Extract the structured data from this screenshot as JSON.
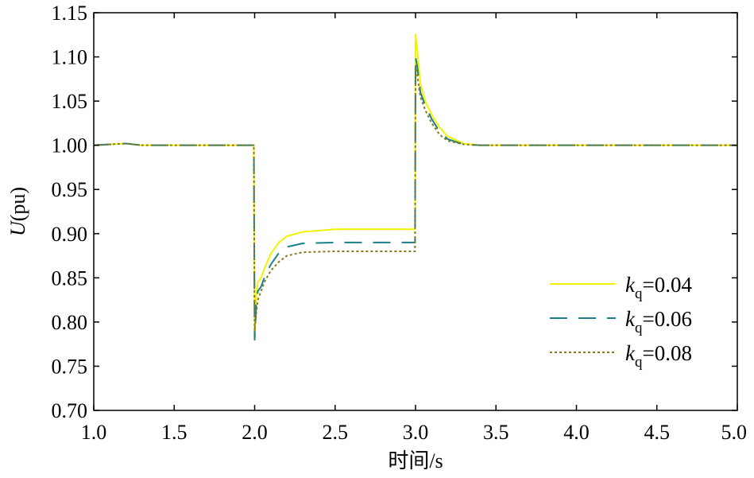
{
  "chart_data": {
    "type": "line",
    "xlabel": "时间/s",
    "ylabel_italic": "U",
    "ylabel_rest": "(pu)",
    "xlim": [
      1.0,
      5.0
    ],
    "ylim": [
      0.7,
      1.15
    ],
    "x_ticks": [
      "1.0",
      "1.5",
      "2.0",
      "2.5",
      "3.0",
      "3.5",
      "4.0",
      "4.5",
      "5.0"
    ],
    "y_ticks": [
      "0.70",
      "0.75",
      "0.80",
      "0.85",
      "0.90",
      "0.95",
      "1.00",
      "1.05",
      "1.10",
      "1.15"
    ],
    "grid": false,
    "legend_position": "bottom-right",
    "series": [
      {
        "name_italic": "k",
        "name_sub": "q",
        "name_value": "=0.04",
        "color": "#f2f200",
        "style": "solid",
        "points": [
          [
            1.0,
            1.0
          ],
          [
            1.1,
            1.001
          ],
          [
            1.2,
            1.002
          ],
          [
            1.3,
            1.0
          ],
          [
            1.5,
            1.0
          ],
          [
            1.995,
            1.0
          ],
          [
            2.0,
            0.78
          ],
          [
            2.01,
            0.83
          ],
          [
            2.02,
            0.845
          ],
          [
            2.04,
            0.85
          ],
          [
            2.06,
            0.86
          ],
          [
            2.1,
            0.877
          ],
          [
            2.15,
            0.89
          ],
          [
            2.2,
            0.897
          ],
          [
            2.3,
            0.902
          ],
          [
            2.5,
            0.905
          ],
          [
            2.8,
            0.905
          ],
          [
            2.997,
            0.905
          ],
          [
            3.0,
            1.125
          ],
          [
            3.01,
            1.11
          ],
          [
            3.03,
            1.07
          ],
          [
            3.06,
            1.05
          ],
          [
            3.1,
            1.035
          ],
          [
            3.15,
            1.02
          ],
          [
            3.2,
            1.01
          ],
          [
            3.3,
            1.002
          ],
          [
            3.4,
            1.0
          ],
          [
            4.0,
            1.0
          ],
          [
            5.0,
            1.0
          ]
        ]
      },
      {
        "name_italic": "k",
        "name_sub": "q",
        "name_value": "=0.06",
        "color": "#1a7f8a",
        "style": "dashed",
        "points": [
          [
            1.0,
            1.0
          ],
          [
            1.1,
            1.001
          ],
          [
            1.2,
            1.002
          ],
          [
            1.3,
            1.0
          ],
          [
            1.5,
            1.0
          ],
          [
            1.995,
            1.0
          ],
          [
            2.0,
            0.78
          ],
          [
            2.01,
            0.82
          ],
          [
            2.02,
            0.835
          ],
          [
            2.04,
            0.84
          ],
          [
            2.06,
            0.85
          ],
          [
            2.1,
            0.865
          ],
          [
            2.15,
            0.878
          ],
          [
            2.2,
            0.885
          ],
          [
            2.3,
            0.889
          ],
          [
            2.5,
            0.89
          ],
          [
            2.8,
            0.89
          ],
          [
            2.997,
            0.89
          ],
          [
            3.0,
            1.1
          ],
          [
            3.01,
            1.09
          ],
          [
            3.03,
            1.06
          ],
          [
            3.06,
            1.045
          ],
          [
            3.1,
            1.03
          ],
          [
            3.15,
            1.015
          ],
          [
            3.2,
            1.007
          ],
          [
            3.3,
            1.001
          ],
          [
            3.4,
            1.0
          ],
          [
            4.0,
            1.0
          ],
          [
            5.0,
            1.0
          ]
        ]
      },
      {
        "name_italic": "k",
        "name_sub": "q",
        "name_value": "=0.08",
        "color": "#8a7a1e",
        "style": "dotted",
        "points": [
          [
            1.0,
            1.0
          ],
          [
            1.1,
            1.001
          ],
          [
            1.2,
            1.002
          ],
          [
            1.3,
            1.0
          ],
          [
            1.5,
            1.0
          ],
          [
            1.995,
            1.0
          ],
          [
            2.0,
            0.79
          ],
          [
            2.01,
            0.81
          ],
          [
            2.02,
            0.825
          ],
          [
            2.04,
            0.835
          ],
          [
            2.06,
            0.845
          ],
          [
            2.1,
            0.858
          ],
          [
            2.15,
            0.868
          ],
          [
            2.2,
            0.875
          ],
          [
            2.3,
            0.879
          ],
          [
            2.5,
            0.88
          ],
          [
            2.8,
            0.88
          ],
          [
            2.997,
            0.88
          ],
          [
            3.0,
            1.09
          ],
          [
            3.01,
            1.08
          ],
          [
            3.03,
            1.055
          ],
          [
            3.06,
            1.04
          ],
          [
            3.1,
            1.025
          ],
          [
            3.15,
            1.012
          ],
          [
            3.2,
            1.005
          ],
          [
            3.3,
            1.001
          ],
          [
            3.4,
            1.0
          ],
          [
            4.0,
            1.0
          ],
          [
            5.0,
            1.0
          ]
        ]
      }
    ]
  }
}
